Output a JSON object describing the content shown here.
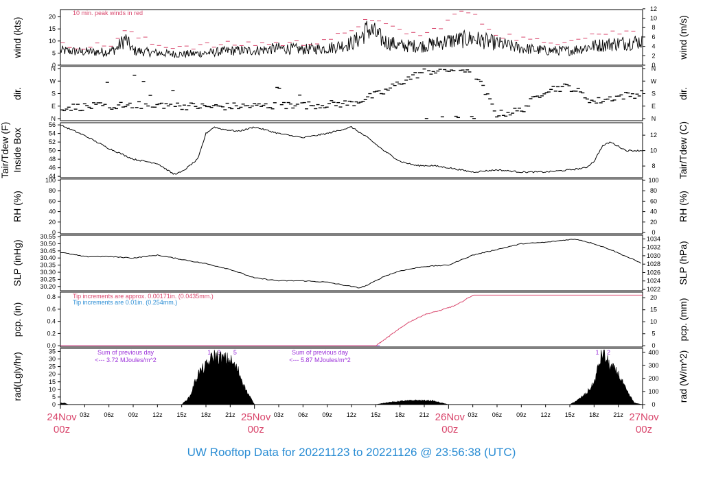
{
  "title": "UW Rooftop Data for 20221123  to  20221126 @ 23:56:38  (UTC)",
  "colors": {
    "peak": "#d9466c",
    "rain_fine": "#d9466c",
    "rain_coarse": "#2a8dd4",
    "rad_note": "#9b30d9",
    "title": "#2a8dd4",
    "day_label": "#d9466c"
  },
  "x_axis": {
    "range_hours": [
      0,
      72
    ],
    "hour_labels": [
      "03z",
      "06z",
      "09z",
      "12z",
      "15z",
      "18z",
      "21z",
      "03z",
      "06z",
      "09z",
      "12z",
      "15z",
      "18z",
      "21z",
      "03z",
      "06z",
      "09z",
      "12z",
      "15z",
      "18z",
      "21z"
    ],
    "day_labels": [
      {
        "top": "24Nov",
        "bottom": "00z"
      },
      {
        "top": "25Nov",
        "bottom": "00z"
      },
      {
        "top": "26Nov",
        "bottom": "00z"
      },
      {
        "top": "27Nov",
        "bottom": "00z"
      }
    ]
  },
  "panels": {
    "wind": {
      "ylabel_left": "wind (kts)",
      "ylabel_right": "wind (m/s)",
      "note": "10 min. peak winds in red",
      "left_ticks": [
        "0",
        "5",
        "10",
        "15",
        "20"
      ],
      "right_ticks": [
        "0",
        "2",
        "4",
        "6",
        "8",
        "10",
        "12"
      ]
    },
    "dir": {
      "ylabel_left": "dir.",
      "ylabel_right": "dir.",
      "left_ticks": [
        "N",
        "E",
        "S",
        "W",
        "N"
      ],
      "right_ticks": [
        "N",
        "E",
        "S",
        "W",
        "N"
      ]
    },
    "temp": {
      "ylabel_left_1": "Tair/Tdew (F)",
      "ylabel_left_2": "Inside Box",
      "ylabel_right": "Tair/Tdew (C)",
      "left_ticks": [
        "44",
        "46",
        "48",
        "50",
        "52",
        "54",
        "56"
      ],
      "right_ticks": [
        "8",
        "10",
        "12"
      ]
    },
    "rh": {
      "ylabel_left": "RH (%)",
      "ylabel_right": "RH (%)",
      "left_ticks": [
        "0",
        "20",
        "40",
        "60",
        "80",
        "100"
      ],
      "right_ticks": [
        "0",
        "20",
        "40",
        "60",
        "80",
        "100"
      ]
    },
    "slp": {
      "ylabel_left": "SLP (inHg)",
      "ylabel_right": "SLP (hPa)",
      "left_ticks": [
        "30.20",
        "30.25",
        "30.30",
        "30.35",
        "30.40",
        "30.45",
        "30.50",
        "30.55"
      ],
      "right_ticks": [
        "1022",
        "1024",
        "1026",
        "1028",
        "1030",
        "1032",
        "1034"
      ]
    },
    "pcp": {
      "ylabel_left": "pcp. (in)",
      "ylabel_right": "pcp. (mm)",
      "note1": "Tip increments are approx. 0.00171in. (0.0435mm.)",
      "note2": "Tip increments are 0.01in. (0.254mm.)",
      "left_ticks": [
        "0.0",
        "0.2",
        "0.4",
        "0.6",
        "0.8"
      ],
      "right_ticks": [
        "0",
        "5",
        "10",
        "15",
        "20"
      ]
    },
    "rad": {
      "ylabel_left": "rad(Lgly/hr)",
      "ylabel_right": "rad (W/m^2)",
      "left_ticks": [
        "0",
        "5",
        "10",
        "15",
        "20",
        "25",
        "30",
        "35"
      ],
      "right_ticks": [
        "0",
        "100",
        "200",
        "300",
        "400"
      ],
      "day1_line1": "Sum of previous day",
      "day1_line2": "<--- 3.72 MJoules/m^2",
      "day2_line1": "Sum of previous day",
      "day2_line2": "<--- 5.87 MJoules/m^2",
      "markers": [
        "1",
        "3",
        "5",
        "1",
        "2"
      ]
    }
  },
  "chart_data": [
    {
      "type": "line",
      "title": "",
      "ylabel": "wind (kts)",
      "ylim": [
        0,
        23
      ],
      "x_units": "hours since 24Nov 00z",
      "series": [
        {
          "name": "",
          "x": [
            0,
            3,
            6,
            7,
            8,
            9,
            12,
            15,
            18,
            21,
            24,
            27,
            30,
            33,
            36,
            37,
            38,
            39,
            40,
            41,
            42,
            45,
            48,
            51,
            54,
            57,
            60,
            63,
            66,
            69,
            72
          ],
          "values": [
            6,
            5.5,
            5.5,
            7,
            11,
            6,
            5,
            4.5,
            5,
            6,
            6,
            7,
            6.5,
            7,
            9,
            11,
            15,
            13,
            10,
            9,
            8,
            8,
            10,
            11,
            9,
            7,
            6,
            6,
            8,
            9,
            10
          ]
        },
        {
          "name": "10 min. peak winds in red",
          "x": [
            0,
            6,
            8,
            12,
            18,
            24,
            30,
            36,
            38,
            40,
            45,
            50,
            54,
            60,
            66,
            72
          ],
          "values": [
            8,
            8,
            14,
            8,
            8,
            9,
            9,
            13,
            21,
            16,
            12,
            23,
            13,
            9,
            13,
            14
          ]
        }
      ]
    },
    {
      "type": "scatter",
      "title": "",
      "ylabel": "dir.",
      "ylim": [
        0,
        360
      ],
      "x_units": "hours since 24Nov 00z",
      "series": [
        {
          "name": "",
          "x": [
            0,
            6,
            12,
            18,
            24,
            30,
            36,
            38,
            40,
            42,
            45,
            48,
            51,
            54,
            57,
            60,
            63,
            66,
            69,
            72
          ],
          "values": [
            80,
            90,
            100,
            85,
            90,
            95,
            110,
            150,
            190,
            260,
            340,
            350,
            355,
            30,
            60,
            210,
            230,
            120,
            160,
            180
          ]
        }
      ]
    },
    {
      "type": "line",
      "title": "",
      "ylabel": "Tair/Tdew (F)",
      "ylim": [
        43.7,
        56.5
      ],
      "x_units": "hours since 24Nov 00z",
      "series": [
        {
          "name": "",
          "x": [
            0,
            3,
            6,
            9,
            12,
            14,
            15,
            17,
            18,
            19,
            20,
            22,
            24,
            27,
            30,
            33,
            36,
            38,
            40,
            42,
            44,
            46,
            48,
            51,
            54,
            57,
            60,
            63,
            65,
            66,
            67,
            68,
            69,
            70,
            72
          ],
          "values": [
            56,
            53.5,
            50.5,
            48,
            47,
            44.5,
            45,
            48,
            54,
            55.5,
            55,
            54.5,
            55.5,
            54,
            53,
            54,
            55.5,
            53,
            50,
            47.5,
            46.5,
            46.5,
            46,
            45,
            45.5,
            45,
            45,
            45.5,
            46,
            47.5,
            51,
            52,
            51,
            50,
            50
          ]
        }
      ]
    },
    {
      "type": "line",
      "title": "",
      "ylabel": "RH (%)",
      "ylim": [
        0,
        100
      ],
      "x_units": "hours since 24Nov 00z",
      "series": []
    },
    {
      "type": "line",
      "title": "",
      "ylabel": "SLP (inHg)",
      "ylim": [
        30.17,
        30.56
      ],
      "x_units": "hours since 24Nov 00z",
      "series": [
        {
          "name": "",
          "x": [
            0,
            3,
            6,
            9,
            12,
            15,
            18,
            21,
            24,
            27,
            30,
            33,
            36,
            37,
            38,
            40,
            42,
            45,
            48,
            51,
            54,
            57,
            60,
            63,
            64,
            66,
            68,
            70,
            72
          ],
          "values": [
            30.44,
            30.41,
            30.41,
            30.4,
            30.42,
            30.39,
            30.36,
            30.32,
            30.26,
            30.24,
            30.24,
            30.23,
            30.2,
            30.19,
            30.21,
            30.27,
            30.31,
            30.34,
            30.35,
            30.42,
            30.46,
            30.5,
            30.51,
            30.53,
            30.53,
            30.5,
            30.46,
            30.41,
            30.36
          ]
        }
      ]
    },
    {
      "type": "line",
      "title": "",
      "ylabel": "pcp. (in)",
      "ylim": [
        -0.02,
        0.88
      ],
      "x_units": "hours since 24Nov 00z",
      "series": [
        {
          "name": "Tip increments are approx. 0.00171in. (0.0435mm.)",
          "x": [
            0,
            39,
            41,
            43,
            45,
            47,
            49,
            51,
            54,
            72
          ],
          "values": [
            0,
            0,
            0.19,
            0.38,
            0.51,
            0.58,
            0.67,
            0.83,
            0.83,
            0.83
          ]
        },
        {
          "name": "Tip increments are 0.01in. (0.254mm.)",
          "x": [
            0,
            72
          ],
          "values": [
            0,
            0
          ]
        }
      ]
    },
    {
      "type": "area",
      "title": "",
      "ylabel": "rad(Lgly/hr)",
      "ylim": [
        0,
        37
      ],
      "x_units": "hours since 24Nov 00z",
      "series": [
        {
          "name": "",
          "x": [
            0,
            0.5,
            1,
            15,
            16,
            17,
            18,
            19,
            20,
            21,
            22,
            23,
            24,
            39,
            40,
            42,
            44,
            46,
            48,
            63,
            64,
            65,
            66,
            67,
            68,
            69,
            70,
            71,
            72
          ],
          "values": [
            1,
            1,
            0,
            0,
            5,
            20,
            25,
            32,
            30,
            29,
            22,
            9,
            0,
            0,
            1,
            2.2,
            2.8,
            2.5,
            0,
            0,
            3,
            7,
            14,
            34,
            25,
            20,
            9,
            1,
            0
          ]
        }
      ]
    }
  ]
}
